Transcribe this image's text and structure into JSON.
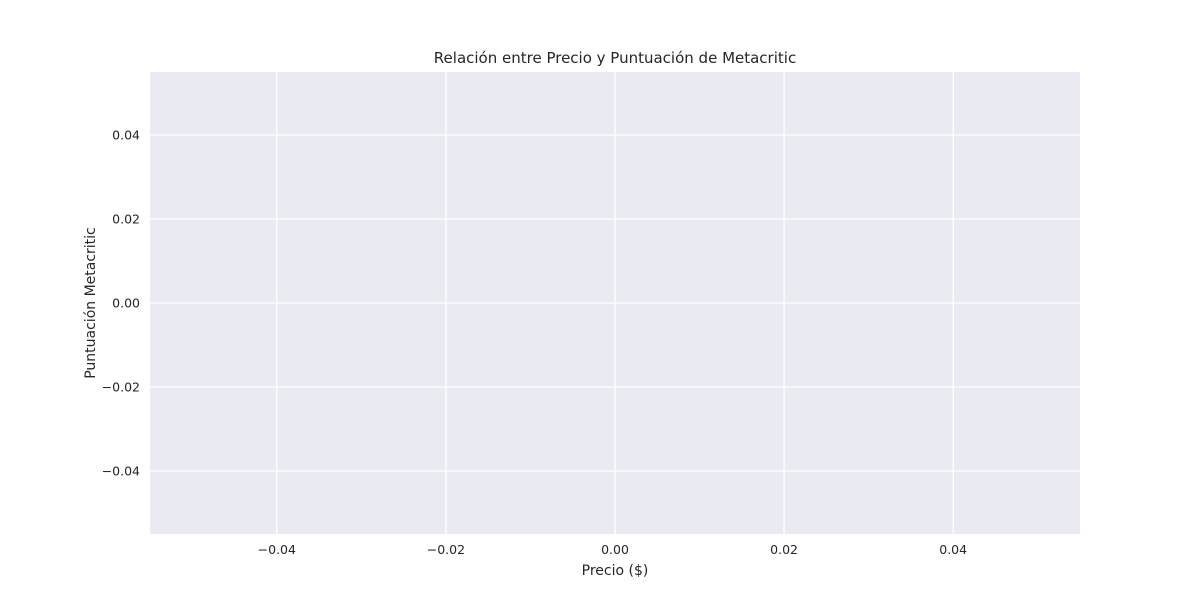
{
  "chart_data": {
    "type": "scatter",
    "title": "Relación entre Precio y Puntuación de Metacritic",
    "xlabel": "Precio ($)",
    "ylabel": "Puntuación Metacritic",
    "x": [],
    "y": [],
    "xlim": [
      -0.055,
      0.055
    ],
    "ylim": [
      -0.055,
      0.055
    ],
    "xticks": [
      -0.04,
      -0.02,
      0.0,
      0.02,
      0.04
    ],
    "yticks": [
      -0.04,
      -0.02,
      0.0,
      0.02,
      0.04
    ],
    "xtick_labels": [
      "−0.04",
      "−0.02",
      "0.00",
      "0.02",
      "0.04"
    ],
    "ytick_labels": [
      "−0.04",
      "−0.02",
      "0.00",
      "0.02",
      "0.04"
    ],
    "grid": true,
    "colors": {
      "plot_background": "#eaeaf2",
      "grid": "#ffffff",
      "text": "#262626"
    }
  }
}
